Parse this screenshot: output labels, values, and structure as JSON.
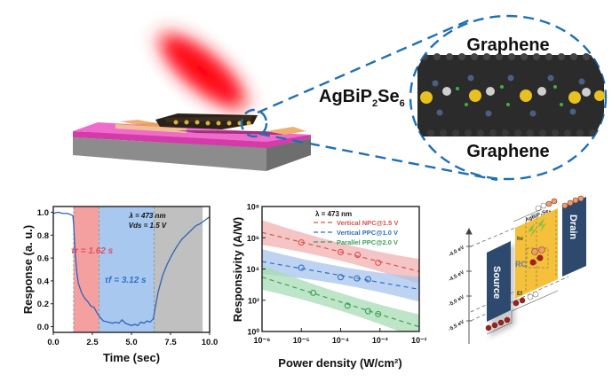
{
  "schematic": {
    "material_label": "AgBiP",
    "material_sub1": "2",
    "material_mid": "Se",
    "material_sub2": "6",
    "top_layer_label": "Graphene",
    "bottom_layer_label": "Graphene",
    "colors": {
      "laser": "#ff1a1a",
      "substrate_top": "#e040b0",
      "substrate_side": "#8a8a8a",
      "electrode": "#f0b070",
      "zoom_dash": "#1f6fb5"
    }
  },
  "chart_data": [
    {
      "type": "line",
      "title": "",
      "xlabel": "Time (sec)",
      "ylabel": "Response (a. u.)",
      "xlim": [
        0,
        10
      ],
      "ylim": [
        -0.05,
        1.05
      ],
      "xticks": [
        "0.0",
        "2.5",
        "5.0",
        "7.5",
        "10.0"
      ],
      "yticks": [
        "0.0",
        "0.2",
        "0.4",
        "0.6",
        "0.8",
        "1.0"
      ],
      "annotations": {
        "lambda": "λ = 473 nm",
        "vds": "Vds = 1.5 V",
        "tau_r": "τr = 1.62 s",
        "tau_f": "τf = 3.12 s"
      },
      "regions": [
        {
          "name": "rise",
          "from": 1.3,
          "to": 2.92,
          "color": "#f4a0a0"
        },
        {
          "name": "fall",
          "from": 2.92,
          "to": 6.45,
          "color": "#a8c8f0"
        },
        {
          "name": "recovery",
          "from": 6.45,
          "to": 9.55,
          "color": "#c0c0c0"
        }
      ],
      "series": [
        {
          "name": "response",
          "color": "#2f63b8",
          "x": [
            0,
            0.3,
            0.6,
            0.9,
            1.1,
            1.25,
            1.3,
            1.4,
            1.5,
            1.6,
            1.8,
            2.0,
            2.2,
            2.4,
            2.6,
            2.8,
            3.0,
            3.2,
            3.5,
            3.8,
            4.0,
            4.2,
            4.4,
            4.6,
            4.8,
            5.0,
            5.2,
            5.4,
            5.6,
            5.8,
            6.0,
            6.2,
            6.4,
            6.5,
            6.7,
            7.0,
            7.3,
            7.6,
            7.9,
            8.2,
            8.5,
            8.8,
            9.1,
            9.4,
            9.7,
            10.0
          ],
          "y": [
            0.99,
            1.0,
            0.99,
            0.99,
            0.98,
            0.97,
            0.9,
            0.65,
            0.48,
            0.38,
            0.3,
            0.25,
            0.22,
            0.18,
            0.17,
            0.12,
            0.08,
            0.05,
            0.04,
            0.03,
            0.04,
            0.03,
            0.06,
            0.03,
            0.02,
            0.01,
            0.02,
            0.01,
            0.04,
            0.03,
            0.05,
            0.04,
            0.07,
            0.15,
            0.3,
            0.45,
            0.55,
            0.63,
            0.7,
            0.76,
            0.8,
            0.84,
            0.88,
            0.9,
            0.93,
            0.96
          ]
        }
      ]
    },
    {
      "type": "line",
      "title": "",
      "xlabel": "Power density (W/cm²)",
      "ylabel": "Responsivity (A/W)",
      "xscale": "log",
      "yscale": "log",
      "xlim": [
        1e-06,
        0.01
      ],
      "ylim": [
        1,
        100000000.0
      ],
      "xticks": [
        "10⁻⁶",
        "10⁻⁵",
        "10⁻⁴",
        "10⁻³",
        "10⁻²"
      ],
      "yticks": [
        "10⁰",
        "10²",
        "10⁴",
        "10⁶",
        "10⁸"
      ],
      "legend_title": "λ = 473 nm",
      "legend_position": "top-right",
      "series": [
        {
          "name": "Vertical NPC@1.5 V",
          "color": "#d9534f",
          "band": "#f2b0b0",
          "fit": [
            [
              1e-06,
              2200000.0
            ],
            [
              0.01,
              7000.0
            ]
          ],
          "points": [
            [
              1e-05,
              500000.0
            ],
            [
              0.0001,
              120000.0
            ],
            [
              0.00027,
              80000.0
            ],
            [
              0.0009,
              25000.0
            ]
          ]
        },
        {
          "name": "Vertical PPC@1.0 V",
          "color": "#2f6fc0",
          "band": "#a8c4ec",
          "fit": [
            [
              1e-06,
              30000.0
            ],
            [
              0.01,
              500.0
            ]
          ],
          "points": [
            [
              1e-05,
              12000.0
            ],
            [
              0.0001,
              3000.0
            ],
            [
              0.00026,
              2500.0
            ],
            [
              0.0005,
              2200.0
            ]
          ]
        },
        {
          "name": "Parallel PPC@2.0 V",
          "color": "#3aa05a",
          "band": "#a8dcb4",
          "fit": [
            [
              1e-06,
              3000.0
            ],
            [
              0.01,
              2
            ]
          ],
          "points": [
            [
              2e-05,
              300.0
            ],
            [
              0.00015,
              45
            ],
            [
              0.0005,
              20
            ],
            [
              0.0009,
              13
            ]
          ]
        }
      ]
    }
  ],
  "band_diagram": {
    "material_label": "AgBiP₂Se₆",
    "source_label": "Source",
    "drain_label": "Drain",
    "hv_label": "hν",
    "rc_label": "RC",
    "ef_label": "Ef",
    "energy_levels": [
      "-4.0 eV",
      "-4.5 eV",
      "-5.0 eV",
      "-5.5 eV"
    ],
    "colors": {
      "electrode": "#2d4a6e",
      "semiconductor": "#f5c03a",
      "electron": "#e8a070",
      "hole": "#a02020"
    }
  }
}
